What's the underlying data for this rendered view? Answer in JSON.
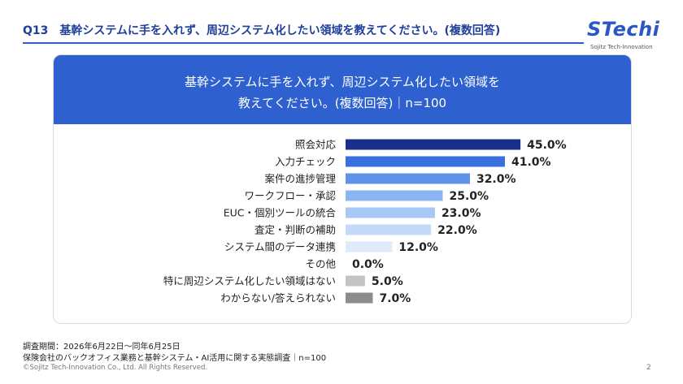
{
  "header": {
    "title": "Q13　基幹システムに手を入れず、周辺システム化したい領域を教えてください。(複数回答)"
  },
  "logo": {
    "main": "STechi",
    "sub": "Sojitz Tech-Innovation"
  },
  "card": {
    "title_line1": "基幹システムに手を入れず、周辺システム化したい領域を",
    "title_line2": "教えてください。(複数回答)｜n=100",
    "accent_color": "#2e61cf"
  },
  "chart_data": {
    "type": "bar",
    "orientation": "horizontal",
    "categories": [
      "照会対応",
      "入力チェック",
      "案件の進捗管理",
      "ワークフロー・承認",
      "EUC・個別ツールの統合",
      "査定・判断の補助",
      "システム間のデータ連携",
      "その他",
      "特に周辺システム化したい領域はない",
      "わからない/答えられない"
    ],
    "values": [
      45.0,
      41.0,
      32.0,
      25.0,
      23.0,
      22.0,
      12.0,
      0.0,
      5.0,
      7.0
    ],
    "value_labels": [
      "45.0%",
      "41.0%",
      "32.0%",
      "25.0%",
      "23.0%",
      "22.0%",
      "12.0%",
      "0.0%",
      "5.0%",
      "7.0%"
    ],
    "colors": [
      "#1a2e8c",
      "#3a6fe0",
      "#5f93ea",
      "#8ab5f0",
      "#a7c9f4",
      "#c3daf8",
      "#dfeafb",
      "#dfeafb",
      "#c4c4c4",
      "#8c8c8c"
    ],
    "xlim": [
      0,
      50
    ],
    "grid": false,
    "legend": "none"
  },
  "footer": {
    "period": "調査期間：2026年6月22日〜同年6月25日",
    "survey": "保険会社のバックオフィス業務と基幹システム・AI活用に関する実態調査｜n=100",
    "copyright": "©Sojitz Tech-Innovation Co., Ltd. All Rights Reserved.",
    "page": "2"
  }
}
